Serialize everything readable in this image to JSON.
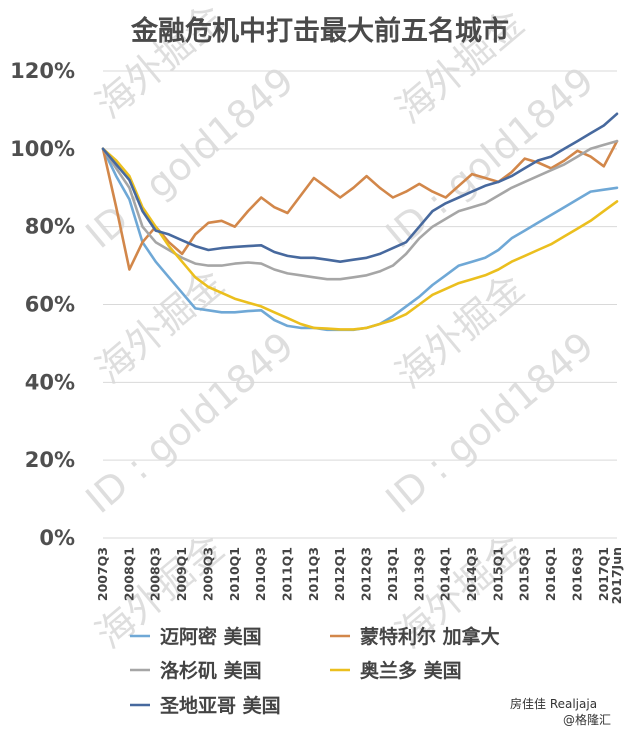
{
  "chart_data": {
    "type": "line",
    "title": "金融危机中打击最大前五名城市",
    "ylim": [
      0,
      120
    ],
    "yticks": [
      "0%",
      "20%",
      "40%",
      "60%",
      "80%",
      "100%",
      "120%"
    ],
    "grid": true,
    "legend_position": "bottom",
    "x": [
      "2007Q3",
      "2007Q4",
      "2008Q1",
      "2008Q2",
      "2008Q3",
      "2008Q4",
      "2009Q1",
      "2009Q2",
      "2009Q3",
      "2009Q4",
      "2010Q1",
      "2010Q2",
      "2010Q3",
      "2010Q4",
      "2011Q1",
      "2011Q2",
      "2011Q3",
      "2011Q4",
      "2012Q1",
      "2012Q2",
      "2012Q3",
      "2012Q4",
      "2013Q1",
      "2013Q2",
      "2013Q3",
      "2013Q4",
      "2014Q1",
      "2014Q2",
      "2014Q3",
      "2014Q4",
      "2015Q1",
      "2015Q2",
      "2015Q3",
      "2015Q4",
      "2016Q1",
      "2016Q2",
      "2016Q3",
      "2016Q4",
      "2017Q1",
      "2017Jun"
    ],
    "xtick_labels": [
      "2007Q3",
      "2008Q1",
      "2008Q3",
      "2009Q1",
      "2009Q3",
      "2010Q1",
      "2010Q3",
      "2011Q1",
      "2011Q3",
      "2012Q1",
      "2012Q3",
      "2013Q1",
      "2013Q3",
      "2014Q1",
      "2014Q3",
      "2015Q1",
      "2015Q3",
      "2016Q1",
      "2016Q3",
      "2017Q1",
      "2017Jun"
    ],
    "series": [
      {
        "name": "迈阿密 美国",
        "color": "#6fa8d6",
        "values": [
          100,
          93,
          87,
          76,
          71,
          67,
          63,
          59,
          58.5,
          58,
          58,
          58.3,
          58.5,
          56,
          54.5,
          54,
          54,
          53.5,
          53.5,
          53.5,
          54,
          55,
          57,
          59.5,
          62,
          65,
          67.5,
          70,
          71,
          72,
          74,
          77,
          79,
          81,
          83,
          85,
          87,
          89,
          89.5,
          90
        ]
      },
      {
        "name": "蒙特利尔 加拿大",
        "color": "#d2874a",
        "values": [
          100,
          85,
          69,
          76,
          80,
          76,
          73,
          78,
          81,
          81.5,
          80,
          84,
          87.5,
          85,
          83.5,
          88,
          92.5,
          90,
          87.5,
          90,
          93,
          90,
          87.5,
          89,
          91,
          89,
          87.5,
          90.5,
          93.5,
          92.5,
          91.5,
          94,
          97.5,
          96.5,
          95,
          97,
          99.5,
          98,
          95.5,
          102
        ]
      },
      {
        "name": "洛杉矶 美国",
        "color": "#a6a6a6",
        "values": [
          100,
          95,
          90,
          80,
          76,
          74,
          72,
          70.5,
          70,
          70,
          70.5,
          70.8,
          70.5,
          69,
          68,
          67.5,
          67,
          66.5,
          66.5,
          67,
          67.5,
          68.5,
          70,
          73,
          77,
          80,
          82,
          84,
          85,
          86,
          88,
          90,
          91.5,
          93,
          94.5,
          96,
          98,
          100,
          101,
          102
        ]
      },
      {
        "name": "奥兰多 美国",
        "color": "#ebbf1e",
        "values": [
          100,
          97,
          93,
          85,
          80,
          75,
          71,
          67,
          64.5,
          63,
          61.5,
          60.5,
          59.5,
          58,
          56.5,
          55,
          54,
          53.8,
          53.6,
          53.6,
          54,
          55,
          56,
          57.5,
          60,
          62.5,
          64,
          65.5,
          66.5,
          67.5,
          69,
          71,
          72.5,
          74,
          75.5,
          77.5,
          79.5,
          81.5,
          84,
          86.5
        ]
      },
      {
        "name": "圣地亚哥 美国",
        "color": "#47699e",
        "values": [
          100,
          96,
          92,
          84,
          79,
          78,
          76.5,
          75,
          74,
          74.5,
          74.8,
          75,
          75.2,
          73.5,
          72.5,
          72,
          72,
          71.5,
          71,
          71.5,
          72,
          73,
          74.5,
          76,
          80,
          84,
          86,
          87.5,
          89,
          90.5,
          91.5,
          93,
          95,
          97,
          98,
          100,
          102,
          104,
          106,
          109
        ]
      }
    ],
    "annotations": [
      "海外掘金",
      "ID : gold1849",
      "房佳佳 Realjaja",
      "@格隆汇"
    ]
  }
}
